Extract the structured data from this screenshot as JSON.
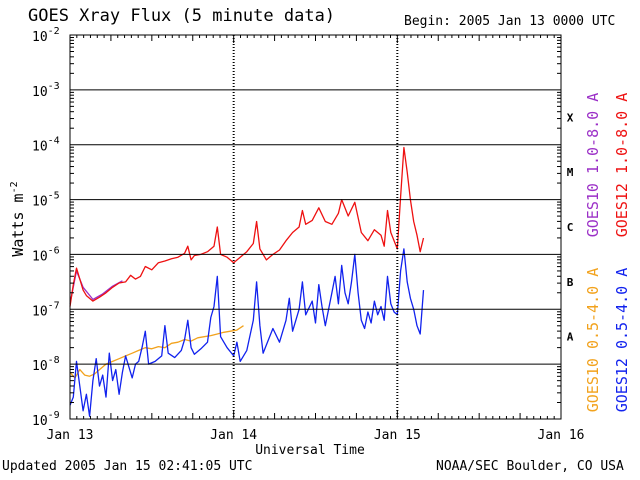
{
  "header": {
    "title": "GOES Xray Flux (5 minute data)",
    "begin": "Begin:  2005 Jan 13 0000 UTC"
  },
  "footer": {
    "updated": "Updated 2005 Jan 15 02:41:05 UTC",
    "credit": "NOAA/SEC Boulder, CO USA"
  },
  "colors": {
    "goes12_long": "#ee1111",
    "goes12_short": "#1122ee",
    "goes10_long": "#9b2fc7",
    "goes10_short": "#f2a21c",
    "grid": "#000000"
  },
  "chart_data": {
    "type": "line",
    "title": "GOES Xray Flux (5 minute data)",
    "xlabel": "Universal Time",
    "ylabel": "Watts m",
    "ylabel_sup": "-2",
    "y_scale": "log",
    "ylim_exponents": [
      -9,
      -2
    ],
    "y_tick_labels": [
      {
        "base": "10",
        "exp": "-9"
      },
      {
        "base": "10",
        "exp": "-8"
      },
      {
        "base": "10",
        "exp": "-7"
      },
      {
        "base": "10",
        "exp": "-6"
      },
      {
        "base": "10",
        "exp": "-5"
      },
      {
        "base": "10",
        "exp": "-4"
      },
      {
        "base": "10",
        "exp": "-3"
      },
      {
        "base": "10",
        "exp": "-2"
      }
    ],
    "xlim_days": [
      0,
      3
    ],
    "x_tick_labels": [
      "Jan 13",
      "Jan 14",
      "Jan 15",
      "Jan 16"
    ],
    "flare_classes": [
      {
        "label": "A",
        "exponent": -8
      },
      {
        "label": "B",
        "exponent": -7
      },
      {
        "label": "C",
        "exponent": -6
      },
      {
        "label": "M",
        "exponent": -5
      },
      {
        "label": "X",
        "exponent": -4
      }
    ],
    "legend": [
      {
        "id": "goes12_long",
        "label": "GOES12 1.0-8.0 A"
      },
      {
        "id": "goes10_long",
        "label": "GOES10 1.0-8.0 A"
      },
      {
        "id": "goes12_short",
        "label": "GOES12 0.5-4.0 A"
      },
      {
        "id": "goes10_short",
        "label": "GOES10 0.5-4.0 A"
      }
    ],
    "series": [
      {
        "name": "GOES12 1.0-8.0 A",
        "color_key": "goes12_long",
        "points": [
          [
            0.0,
            -6.95
          ],
          [
            0.02,
            -6.55
          ],
          [
            0.04,
            -6.25
          ],
          [
            0.06,
            -6.45
          ],
          [
            0.08,
            -6.65
          ],
          [
            0.1,
            -6.75
          ],
          [
            0.14,
            -6.85
          ],
          [
            0.18,
            -6.78
          ],
          [
            0.22,
            -6.7
          ],
          [
            0.26,
            -6.6
          ],
          [
            0.3,
            -6.52
          ],
          [
            0.34,
            -6.5
          ],
          [
            0.37,
            -6.38
          ],
          [
            0.4,
            -6.45
          ],
          [
            0.43,
            -6.4
          ],
          [
            0.46,
            -6.22
          ],
          [
            0.5,
            -6.28
          ],
          [
            0.54,
            -6.15
          ],
          [
            0.58,
            -6.12
          ],
          [
            0.62,
            -6.08
          ],
          [
            0.66,
            -6.05
          ],
          [
            0.7,
            -5.98
          ],
          [
            0.72,
            -5.85
          ],
          [
            0.74,
            -6.1
          ],
          [
            0.76,
            -6.02
          ],
          [
            0.8,
            -6.0
          ],
          [
            0.84,
            -5.95
          ],
          [
            0.88,
            -5.85
          ],
          [
            0.9,
            -5.5
          ],
          [
            0.92,
            -6.0
          ],
          [
            0.96,
            -6.05
          ],
          [
            1.0,
            -6.15
          ],
          [
            1.04,
            -6.05
          ],
          [
            1.08,
            -5.95
          ],
          [
            1.12,
            -5.8
          ],
          [
            1.14,
            -5.4
          ],
          [
            1.16,
            -5.9
          ],
          [
            1.2,
            -6.1
          ],
          [
            1.24,
            -6.0
          ],
          [
            1.28,
            -5.92
          ],
          [
            1.32,
            -5.75
          ],
          [
            1.36,
            -5.6
          ],
          [
            1.4,
            -5.5
          ],
          [
            1.42,
            -5.2
          ],
          [
            1.44,
            -5.45
          ],
          [
            1.48,
            -5.38
          ],
          [
            1.52,
            -5.15
          ],
          [
            1.56,
            -5.4
          ],
          [
            1.6,
            -5.45
          ],
          [
            1.64,
            -5.25
          ],
          [
            1.66,
            -5.0
          ],
          [
            1.7,
            -5.3
          ],
          [
            1.74,
            -5.05
          ],
          [
            1.78,
            -5.6
          ],
          [
            1.82,
            -5.75
          ],
          [
            1.86,
            -5.55
          ],
          [
            1.9,
            -5.65
          ],
          [
            1.92,
            -5.85
          ],
          [
            1.94,
            -5.2
          ],
          [
            1.96,
            -5.6
          ],
          [
            2.0,
            -5.9
          ],
          [
            2.02,
            -4.95
          ],
          [
            2.04,
            -4.05
          ],
          [
            2.06,
            -4.5
          ],
          [
            2.08,
            -5.0
          ],
          [
            2.1,
            -5.4
          ],
          [
            2.12,
            -5.65
          ],
          [
            2.14,
            -5.95
          ],
          [
            2.16,
            -5.7
          ]
        ]
      },
      {
        "name": "GOES10 1.0-8.0 A",
        "color_key": "goes10_long",
        "points": [
          [
            0.0,
            -6.9
          ],
          [
            0.04,
            -6.3
          ],
          [
            0.08,
            -6.6
          ],
          [
            0.14,
            -6.82
          ],
          [
            0.2,
            -6.72
          ],
          [
            0.26,
            -6.58
          ],
          [
            0.32,
            -6.48
          ]
        ]
      },
      {
        "name": "GOES12 0.5-4.0 A",
        "color_key": "goes12_short",
        "points": [
          [
            0.0,
            -8.75
          ],
          [
            0.02,
            -8.6
          ],
          [
            0.04,
            -7.95
          ],
          [
            0.06,
            -8.4
          ],
          [
            0.08,
            -8.85
          ],
          [
            0.1,
            -8.55
          ],
          [
            0.12,
            -8.95
          ],
          [
            0.14,
            -8.3
          ],
          [
            0.16,
            -7.9
          ],
          [
            0.18,
            -8.4
          ],
          [
            0.2,
            -8.2
          ],
          [
            0.22,
            -8.6
          ],
          [
            0.24,
            -7.8
          ],
          [
            0.26,
            -8.3
          ],
          [
            0.28,
            -8.1
          ],
          [
            0.3,
            -8.55
          ],
          [
            0.32,
            -8.15
          ],
          [
            0.34,
            -7.85
          ],
          [
            0.36,
            -8.05
          ],
          [
            0.38,
            -8.25
          ],
          [
            0.4,
            -8.0
          ],
          [
            0.42,
            -7.95
          ],
          [
            0.44,
            -7.7
          ],
          [
            0.46,
            -7.4
          ],
          [
            0.48,
            -8.0
          ],
          [
            0.52,
            -7.95
          ],
          [
            0.56,
            -7.85
          ],
          [
            0.58,
            -7.3
          ],
          [
            0.6,
            -7.8
          ],
          [
            0.64,
            -7.88
          ],
          [
            0.68,
            -7.75
          ],
          [
            0.7,
            -7.55
          ],
          [
            0.72,
            -7.2
          ],
          [
            0.74,
            -7.7
          ],
          [
            0.76,
            -7.82
          ],
          [
            0.8,
            -7.72
          ],
          [
            0.84,
            -7.6
          ],
          [
            0.86,
            -7.15
          ],
          [
            0.88,
            -6.95
          ],
          [
            0.9,
            -6.4
          ],
          [
            0.92,
            -7.5
          ],
          [
            0.96,
            -7.7
          ],
          [
            1.0,
            -7.85
          ],
          [
            1.02,
            -7.6
          ],
          [
            1.04,
            -7.95
          ],
          [
            1.08,
            -7.75
          ],
          [
            1.12,
            -7.2
          ],
          [
            1.14,
            -6.5
          ],
          [
            1.16,
            -7.3
          ],
          [
            1.18,
            -7.8
          ],
          [
            1.2,
            -7.65
          ],
          [
            1.24,
            -7.35
          ],
          [
            1.28,
            -7.6
          ],
          [
            1.32,
            -7.2
          ],
          [
            1.34,
            -6.8
          ],
          [
            1.36,
            -7.4
          ],
          [
            1.4,
            -7.0
          ],
          [
            1.42,
            -6.5
          ],
          [
            1.44,
            -7.1
          ],
          [
            1.48,
            -6.85
          ],
          [
            1.5,
            -7.25
          ],
          [
            1.52,
            -6.55
          ],
          [
            1.54,
            -6.95
          ],
          [
            1.56,
            -7.3
          ],
          [
            1.6,
            -6.7
          ],
          [
            1.62,
            -6.4
          ],
          [
            1.64,
            -6.9
          ],
          [
            1.66,
            -6.2
          ],
          [
            1.68,
            -6.7
          ],
          [
            1.7,
            -6.9
          ],
          [
            1.72,
            -6.5
          ],
          [
            1.74,
            -6.0
          ],
          [
            1.76,
            -6.7
          ],
          [
            1.78,
            -7.2
          ],
          [
            1.8,
            -7.35
          ],
          [
            1.82,
            -7.05
          ],
          [
            1.84,
            -7.25
          ],
          [
            1.86,
            -6.85
          ],
          [
            1.88,
            -7.1
          ],
          [
            1.9,
            -6.95
          ],
          [
            1.92,
            -7.2
          ],
          [
            1.94,
            -6.4
          ],
          [
            1.96,
            -6.9
          ],
          [
            1.98,
            -7.05
          ],
          [
            2.0,
            -7.1
          ],
          [
            2.02,
            -6.3
          ],
          [
            2.04,
            -5.9
          ],
          [
            2.06,
            -6.5
          ],
          [
            2.08,
            -6.8
          ],
          [
            2.1,
            -7.0
          ],
          [
            2.12,
            -7.3
          ],
          [
            2.14,
            -7.45
          ],
          [
            2.16,
            -6.65
          ]
        ]
      },
      {
        "name": "GOES10 0.5-4.0 A",
        "color_key": "goes10_short",
        "points": [
          [
            0.0,
            -8.15
          ],
          [
            0.03,
            -8.25
          ],
          [
            0.06,
            -8.1
          ],
          [
            0.09,
            -8.2
          ],
          [
            0.12,
            -8.22
          ],
          [
            0.15,
            -8.18
          ],
          [
            0.18,
            -8.1
          ],
          [
            0.22,
            -8.0
          ],
          [
            0.26,
            -7.95
          ],
          [
            0.3,
            -7.9
          ],
          [
            0.34,
            -7.85
          ],
          [
            0.38,
            -7.8
          ],
          [
            0.42,
            -7.75
          ],
          [
            0.46,
            -7.7
          ],
          [
            0.5,
            -7.72
          ],
          [
            0.54,
            -7.68
          ],
          [
            0.58,
            -7.7
          ],
          [
            0.62,
            -7.62
          ],
          [
            0.66,
            -7.6
          ],
          [
            0.7,
            -7.55
          ],
          [
            0.74,
            -7.58
          ],
          [
            0.78,
            -7.52
          ],
          [
            0.82,
            -7.5
          ],
          [
            0.86,
            -7.48
          ],
          [
            0.9,
            -7.45
          ],
          [
            0.94,
            -7.42
          ],
          [
            0.98,
            -7.4
          ],
          [
            1.02,
            -7.38
          ],
          [
            1.06,
            -7.3
          ]
        ]
      }
    ]
  }
}
